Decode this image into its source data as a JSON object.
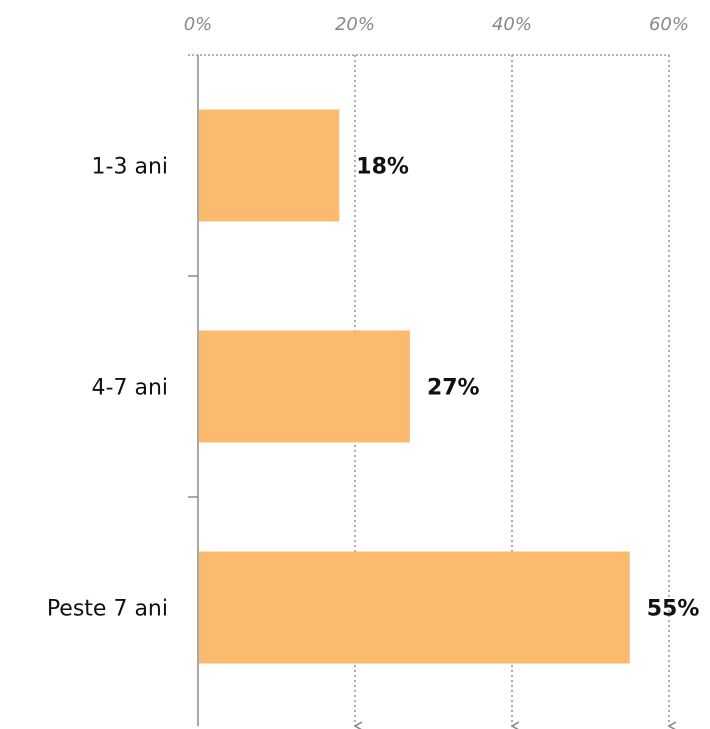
{
  "chart_data": {
    "type": "bar",
    "orientation": "horizontal",
    "categories": [
      "1-3 ani",
      "4-7 ani",
      "Peste 7 ani"
    ],
    "values": [
      18,
      27,
      55
    ],
    "value_labels": [
      "18%",
      "27%",
      "55%"
    ],
    "x_ticks": [
      "0%",
      "20%",
      "40%",
      "60%"
    ],
    "x_tick_values": [
      0,
      20,
      40,
      60
    ],
    "xlim": [
      0,
      60
    ],
    "x_axis_position": "top",
    "grid": "vertical dotted with arrow ends",
    "legend": "none",
    "bar_color": "#FBBA6E",
    "axis_color": "#888888"
  }
}
